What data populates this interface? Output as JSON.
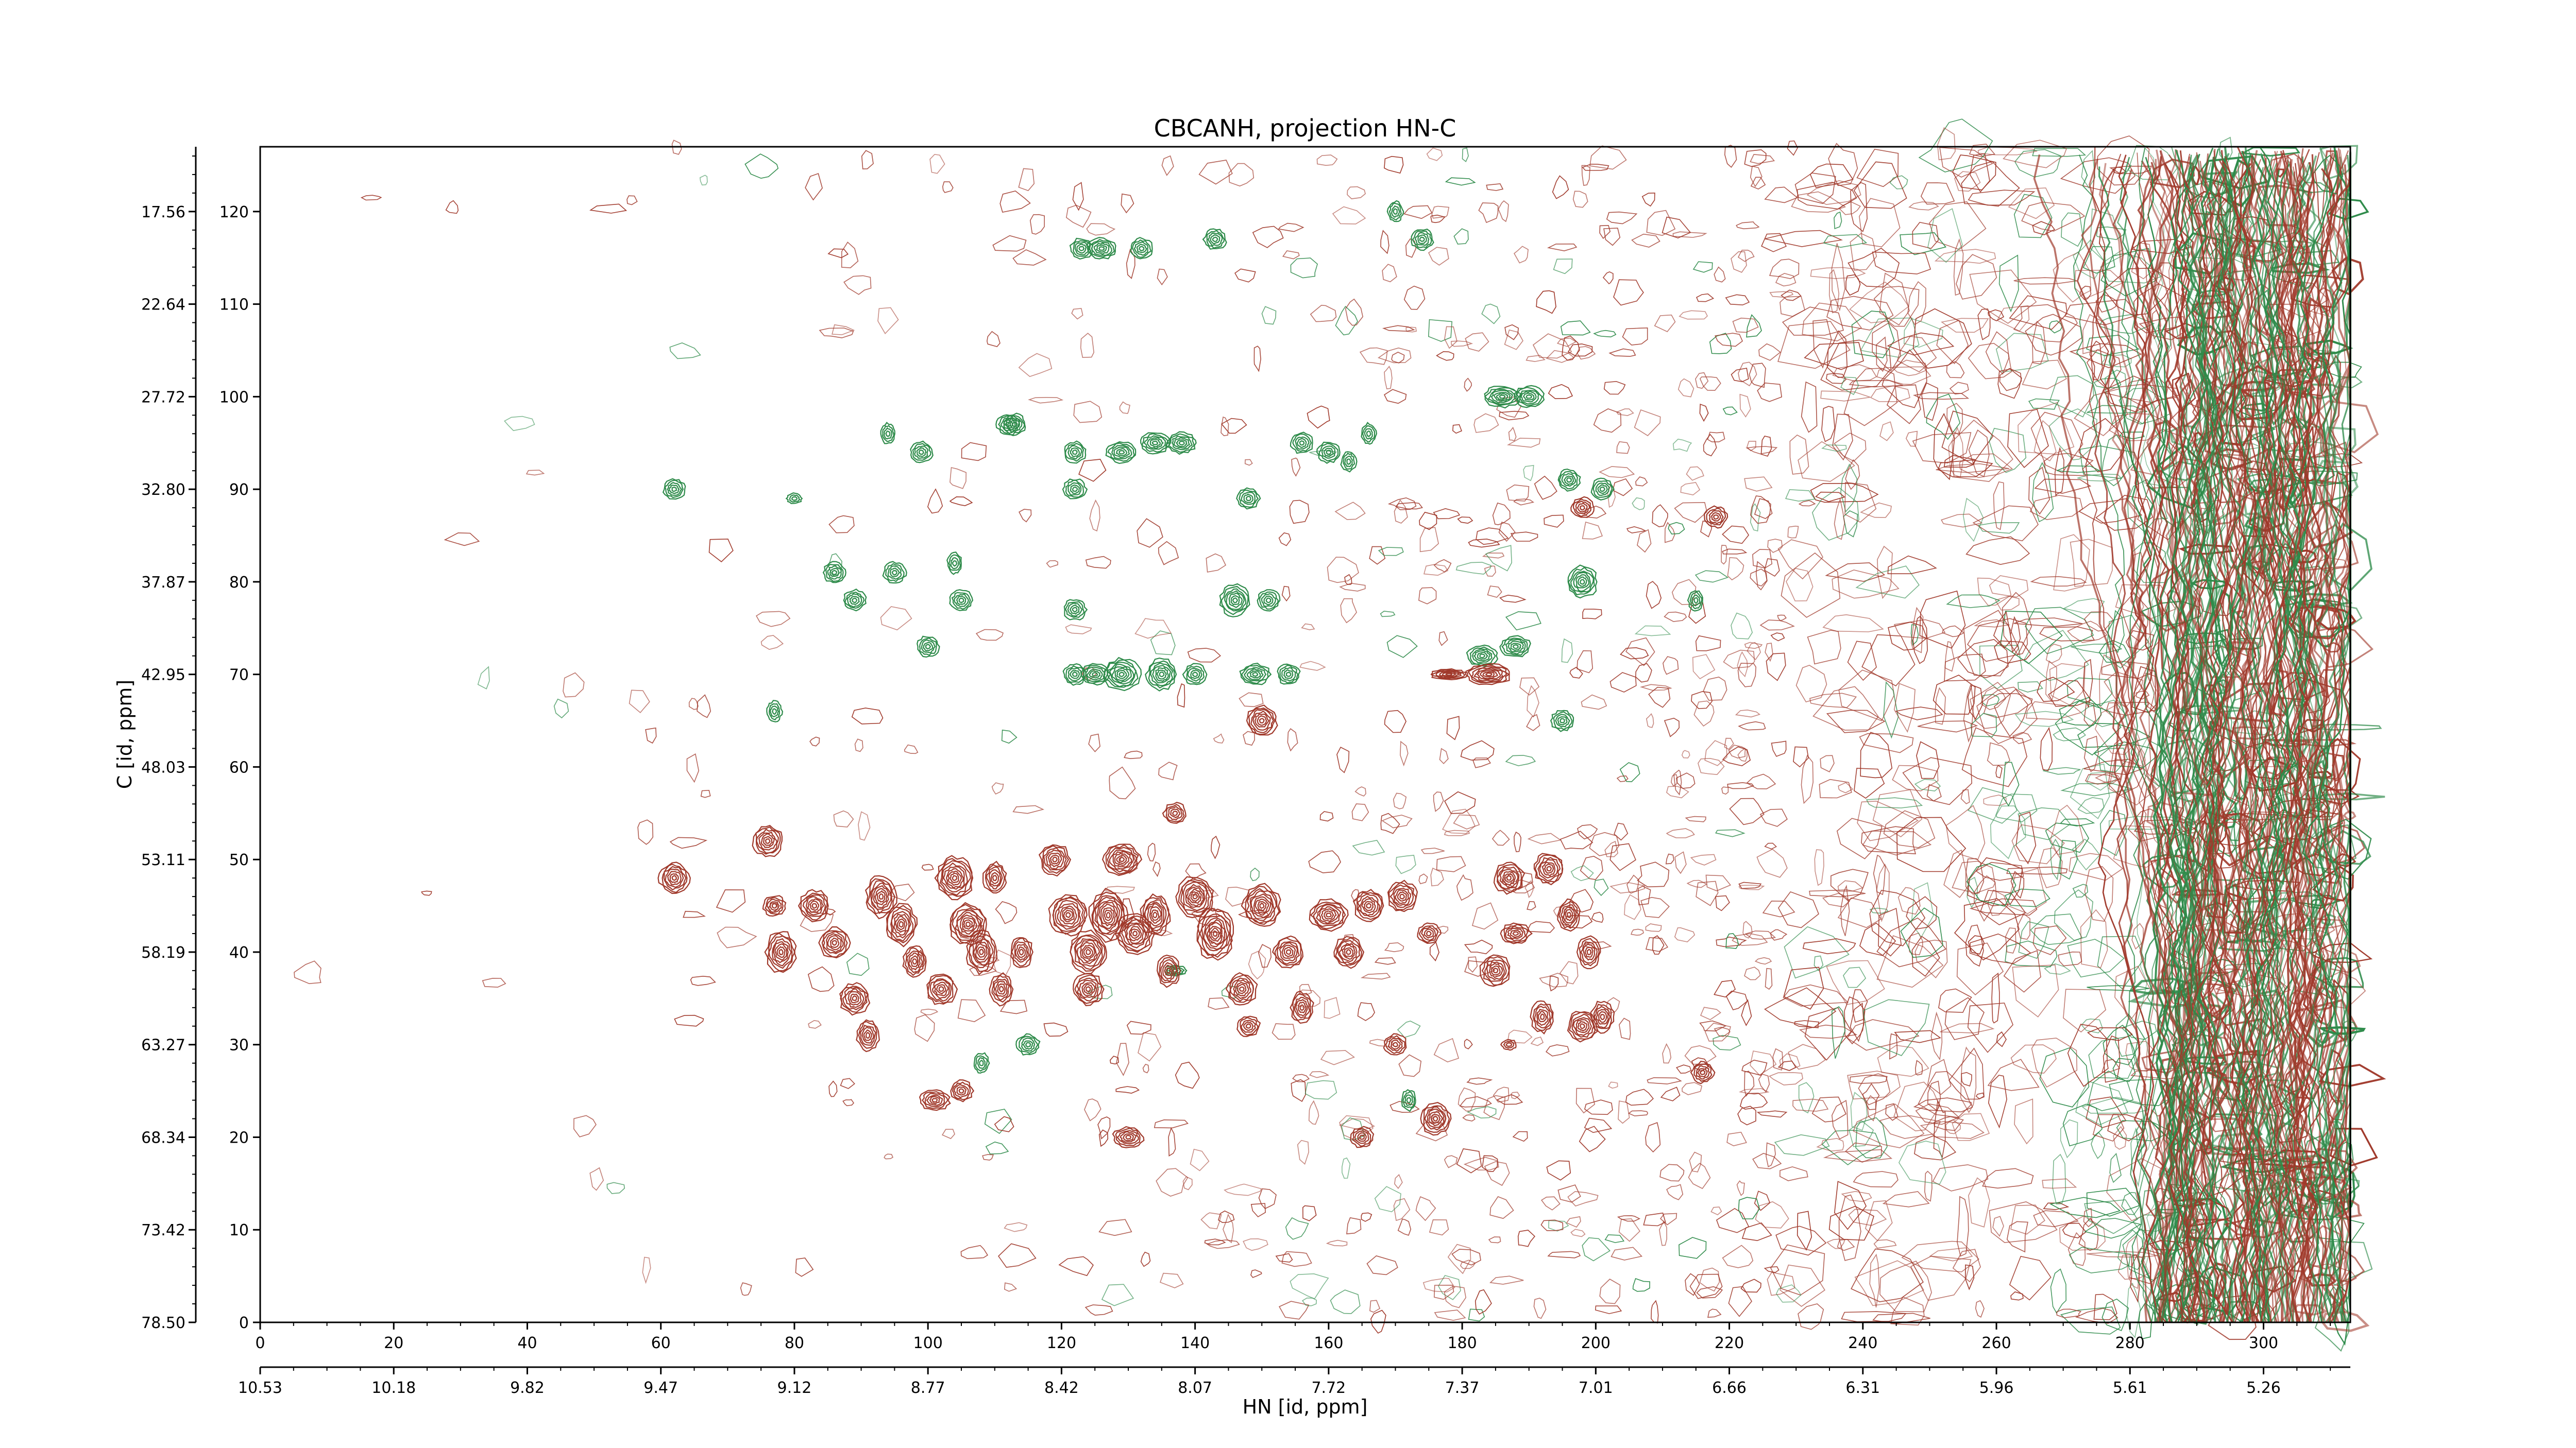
{
  "chart_data": {
    "type": "contour",
    "title": "CBCANH, projection HN-C",
    "xlabel": "HN [id, ppm]",
    "ylabel": "C [id, ppm]",
    "x_index_range": [
      0,
      313
    ],
    "y_index_range": [
      0,
      127
    ],
    "x_index_ticks": [
      "0",
      "20",
      "40",
      "60",
      "80",
      "100",
      "120",
      "140",
      "160",
      "180",
      "200",
      "220",
      "240",
      "260",
      "280",
      "300"
    ],
    "x_ppm_ticks": [
      "10.53",
      "10.18",
      "9.82",
      "9.47",
      "9.12",
      "8.77",
      "8.42",
      "8.07",
      "7.72",
      "7.37",
      "7.01",
      "6.66",
      "6.31",
      "5.96",
      "5.61",
      "5.26"
    ],
    "y_index_ticks": [
      "0",
      "10",
      "20",
      "30",
      "40",
      "50",
      "60",
      "70",
      "80",
      "90",
      "100",
      "110",
      "120"
    ],
    "y_ppm_ticks": [
      "78.50",
      "73.42",
      "68.34",
      "63.27",
      "58.19",
      "53.11",
      "48.03",
      "42.95",
      "37.87",
      "32.80",
      "27.72",
      "22.64",
      "17.56"
    ],
    "colors": {
      "positive": "#a0392b",
      "negative": "#2e8b4a"
    },
    "positive_peaks": [
      [
        62,
        48,
        4,
        3
      ],
      [
        76,
        52,
        4,
        3
      ],
      [
        77,
        45,
        3,
        2
      ],
      [
        78,
        40,
        4,
        4
      ],
      [
        83,
        45,
        4,
        3
      ],
      [
        86,
        41,
        4,
        3
      ],
      [
        89,
        35,
        4,
        3
      ],
      [
        91,
        31,
        3,
        3
      ],
      [
        93,
        46,
        4,
        4
      ],
      [
        96,
        43,
        4,
        4
      ],
      [
        98,
        39,
        3,
        3
      ],
      [
        102,
        36,
        4,
        3
      ],
      [
        104,
        48,
        5,
        4
      ],
      [
        106,
        43,
        5,
        4
      ],
      [
        108,
        40,
        4,
        4
      ],
      [
        101,
        24,
        4,
        2
      ],
      [
        105,
        25,
        3,
        2
      ],
      [
        110,
        48,
        3,
        3
      ],
      [
        111,
        36,
        3,
        3
      ],
      [
        114,
        40,
        3,
        3
      ],
      [
        119,
        50,
        4,
        3
      ],
      [
        121,
        44,
        5,
        4
      ],
      [
        124,
        40,
        5,
        4
      ],
      [
        124,
        36,
        4,
        3
      ],
      [
        127,
        44,
        5,
        5
      ],
      [
        129,
        50,
        5,
        3
      ],
      [
        131,
        42,
        5,
        4
      ],
      [
        134,
        44,
        4,
        4
      ],
      [
        136,
        38,
        3,
        3
      ],
      [
        140,
        46,
        5,
        4
      ],
      [
        143,
        42,
        5,
        5
      ],
      [
        147,
        36,
        4,
        3
      ],
      [
        148,
        32,
        3,
        2
      ],
      [
        150,
        45,
        5,
        4
      ],
      [
        154,
        40,
        4,
        3
      ],
      [
        156,
        34,
        3,
        3
      ],
      [
        160,
        44,
        5,
        3
      ],
      [
        163,
        40,
        4,
        3
      ],
      [
        166,
        45,
        4,
        3
      ],
      [
        170,
        30,
        3,
        2
      ],
      [
        171,
        46,
        4,
        3
      ],
      [
        175,
        42,
        3,
        2
      ],
      [
        176,
        22,
        4,
        3
      ],
      [
        178,
        70,
        5,
        1
      ],
      [
        184,
        70,
        6,
        2
      ],
      [
        187,
        48,
        4,
        3
      ],
      [
        188,
        42,
        4,
        2
      ],
      [
        185,
        38,
        4,
        3
      ],
      [
        193,
        49,
        4,
        3
      ],
      [
        196,
        44,
        3,
        3
      ],
      [
        199,
        40,
        3,
        3
      ],
      [
        192,
        33,
        3,
        3
      ],
      [
        198,
        32,
        4,
        3
      ],
      [
        201,
        33,
        3,
        3
      ],
      [
        150,
        65,
        4,
        3
      ],
      [
        137,
        55,
        3,
        2
      ],
      [
        198,
        88,
        3,
        2
      ],
      [
        216,
        27,
        3,
        2
      ],
      [
        218,
        87,
        3,
        2
      ],
      [
        187,
        30,
        2,
        1
      ],
      [
        130,
        20,
        4,
        2
      ],
      [
        165,
        20,
        3,
        2
      ]
    ],
    "negative_peaks": [
      [
        62,
        90,
        3,
        2
      ],
      [
        77,
        66,
        2,
        2
      ],
      [
        80,
        89,
        2,
        1
      ],
      [
        86,
        81,
        3,
        2
      ],
      [
        89,
        78,
        3,
        2
      ],
      [
        95,
        81,
        3,
        2
      ],
      [
        94,
        96,
        2,
        2
      ],
      [
        99,
        94,
        3,
        2
      ],
      [
        100,
        73,
        3,
        2
      ],
      [
        105,
        78,
        3,
        2
      ],
      [
        104,
        82,
        2,
        2
      ],
      [
        112,
        97,
        3,
        2
      ],
      [
        115,
        30,
        3,
        2
      ],
      [
        122,
        77,
        3,
        2
      ],
      [
        122,
        94,
        3,
        2
      ],
      [
        122,
        90,
        3,
        2
      ],
      [
        122,
        70,
        3,
        2
      ],
      [
        123,
        116,
        3,
        2
      ],
      [
        125,
        70,
        4,
        2
      ],
      [
        126,
        116,
        4,
        2
      ],
      [
        129,
        70,
        5,
        3
      ],
      [
        129,
        94,
        4,
        2
      ],
      [
        132,
        116,
        3,
        2
      ],
      [
        135,
        70,
        4,
        3
      ],
      [
        134,
        95,
        4,
        2
      ],
      [
        138,
        95,
        4,
        2
      ],
      [
        140,
        70,
        3,
        2
      ],
      [
        143,
        117,
        3,
        2
      ],
      [
        146,
        78,
        4,
        3
      ],
      [
        149,
        70,
        4,
        2
      ],
      [
        148,
        89,
        3,
        2
      ],
      [
        151,
        78,
        3,
        2
      ],
      [
        154,
        70,
        3,
        2
      ],
      [
        156,
        95,
        3,
        2
      ],
      [
        160,
        94,
        3,
        2
      ],
      [
        163,
        93,
        2,
        2
      ],
      [
        166,
        96,
        2,
        2
      ],
      [
        170,
        120,
        2,
        2
      ],
      [
        174,
        117,
        3,
        2
      ],
      [
        186,
        100,
        5,
        2
      ],
      [
        190,
        100,
        4,
        2
      ],
      [
        183,
        72,
        4,
        2
      ],
      [
        188,
        73,
        4,
        2
      ],
      [
        195,
        65,
        3,
        2
      ],
      [
        196,
        91,
        3,
        2
      ],
      [
        201,
        90,
        3,
        2
      ],
      [
        198,
        80,
        4,
        3
      ],
      [
        215,
        78,
        2,
        2
      ],
      [
        113,
        97,
        3,
        2
      ],
      [
        108,
        28,
        2,
        2
      ],
      [
        172,
        24,
        2,
        2
      ],
      [
        137,
        38,
        3,
        1
      ]
    ]
  }
}
